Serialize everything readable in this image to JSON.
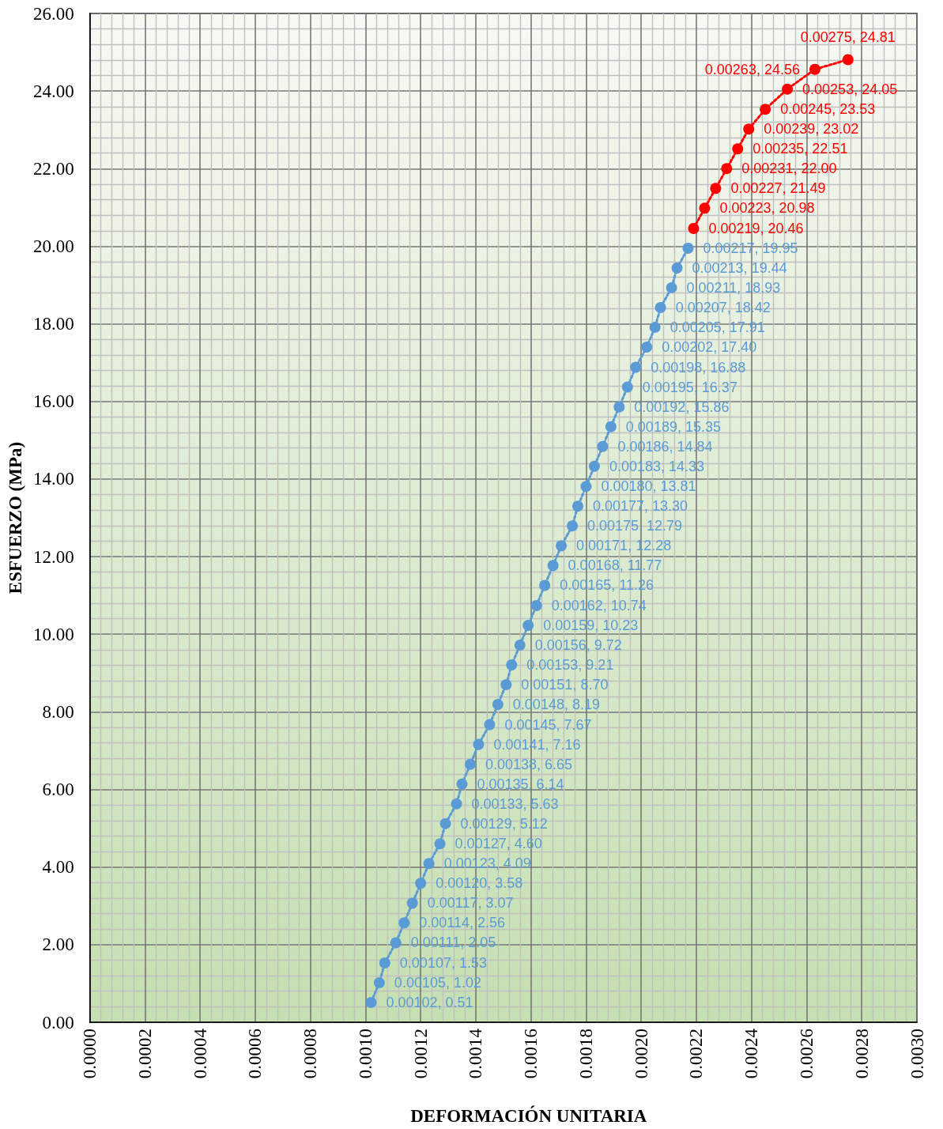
{
  "chart_data": {
    "type": "line",
    "xlabel": "DEFORMACIÓN UNITARIA",
    "ylabel": "ESFUERZO (MPa)",
    "xlim": [
      0,
      0.003
    ],
    "ylim": [
      0,
      26
    ],
    "xticks": [
      {
        "value": 0,
        "label": "0.0000"
      },
      {
        "value": 0.0002,
        "label": "0.0002"
      },
      {
        "value": 0.0004,
        "label": "0.0004"
      },
      {
        "value": 0.0006,
        "label": "0.0006"
      },
      {
        "value": 0.0008,
        "label": "0.0008"
      },
      {
        "value": 0.001,
        "label": "0.0010"
      },
      {
        "value": 0.0012,
        "label": "0.0012"
      },
      {
        "value": 0.0014,
        "label": "0.0014"
      },
      {
        "value": 0.0016,
        "label": "0.0016"
      },
      {
        "value": 0.0018,
        "label": "0.0018"
      },
      {
        "value": 0.002,
        "label": "0.0020"
      },
      {
        "value": 0.0022,
        "label": "0.0022"
      },
      {
        "value": 0.0024,
        "label": "0.0024"
      },
      {
        "value": 0.0026,
        "label": "0.0026"
      },
      {
        "value": 0.0028,
        "label": "0.0028"
      },
      {
        "value": 0.003,
        "label": "0.0030"
      }
    ],
    "yticks": [
      {
        "value": 0,
        "label": "0.00"
      },
      {
        "value": 2,
        "label": "2.00"
      },
      {
        "value": 4,
        "label": "4.00"
      },
      {
        "value": 6,
        "label": "6.00"
      },
      {
        "value": 8,
        "label": "8.00"
      },
      {
        "value": 10,
        "label": "10.00"
      },
      {
        "value": 12,
        "label": "12.00"
      },
      {
        "value": 14,
        "label": "14.00"
      },
      {
        "value": 16,
        "label": "16.00"
      },
      {
        "value": 18,
        "label": "18.00"
      },
      {
        "value": 20,
        "label": "20.00"
      },
      {
        "value": 22,
        "label": "22.00"
      },
      {
        "value": 24,
        "label": "24.00"
      },
      {
        "value": 26,
        "label": "26.00"
      }
    ],
    "grid": true,
    "marker": "circle",
    "line_style": "dotted",
    "series": [
      {
        "color": "#5b9bd5",
        "x": [
          0.00102,
          0.00105,
          0.00107,
          0.00111,
          0.00114,
          0.00117,
          0.0012,
          0.00123,
          0.00127,
          0.00129,
          0.00133,
          0.00135,
          0.00138,
          0.00141,
          0.00145,
          0.00148,
          0.00151,
          0.00153,
          0.00156,
          0.00159,
          0.00162,
          0.00165,
          0.00168,
          0.00171,
          0.00175,
          0.00177,
          0.0018,
          0.00183,
          0.00186,
          0.00189,
          0.00192,
          0.00195,
          0.00198,
          0.00202,
          0.00205,
          0.00207,
          0.00211,
          0.00213,
          0.00217
        ],
        "values": [
          0.51,
          1.02,
          1.53,
          2.05,
          2.56,
          3.07,
          3.58,
          4.09,
          4.6,
          5.12,
          5.63,
          6.14,
          6.65,
          7.16,
          7.67,
          8.19,
          8.7,
          9.21,
          9.72,
          10.23,
          10.74,
          11.26,
          11.77,
          12.28,
          12.79,
          13.3,
          13.81,
          14.33,
          14.84,
          15.35,
          15.86,
          16.37,
          16.88,
          17.4,
          17.91,
          18.42,
          18.93,
          19.44,
          19.95
        ],
        "value_labels": [
          "0.00102, 0.51",
          "0.00105, 1.02",
          "0.00107, 1.53",
          "0.00111, 2.05",
          "0.00114, 2.56",
          "0.00117, 3.07",
          "0.00120, 3.58",
          "0.00123, 4.09",
          "0.00127, 4.60",
          "0.00129, 5.12",
          "0.00133, 5.63",
          "0.00135, 6.14",
          "0.00138, 6.65",
          "0.00141, 7.16",
          "0.00145, 7.67",
          "0.00148, 8.19",
          "0.00151, 8.70",
          "0.00153, 9.21",
          "0.00156, 9.72",
          "0.00159, 10.23",
          "0.00162, 10.74",
          "0.00165, 11.26",
          "0.00168, 11.77",
          "0.00171, 12.28",
          "0.00175, 12.79",
          "0.00177, 13.30",
          "0.00180, 13.81",
          "0.00183, 14.33",
          "0.00186, 14.84",
          "0.00189, 15.35",
          "0.00192, 15.86",
          "0.00195, 16.37",
          "0.00198, 16.88",
          "0.00202, 17.40",
          "0.00205, 17.91",
          "0.00207, 18.42",
          "0.00211, 18.93",
          "0.00213, 19.44",
          "0.00217, 19.95"
        ]
      },
      {
        "color": "#ff0000",
        "x": [
          0.00219,
          0.00223,
          0.00227,
          0.00231,
          0.00235,
          0.00239,
          0.00245,
          0.00253,
          0.00263,
          0.00275
        ],
        "values": [
          20.46,
          20.98,
          21.49,
          22.0,
          22.51,
          23.02,
          23.53,
          24.05,
          24.56,
          24.81
        ],
        "value_labels": [
          "0.00219, 20.46",
          "0.00223, 20.98",
          "0.00227, 21.49",
          "0.00231, 22.00",
          "0.00235, 22.51",
          "0.00239, 23.02",
          "0.00245, 23.53",
          "0.00253, 24.05",
          "0.00263, 24.56",
          "0.00275, 24.81"
        ]
      }
    ]
  }
}
